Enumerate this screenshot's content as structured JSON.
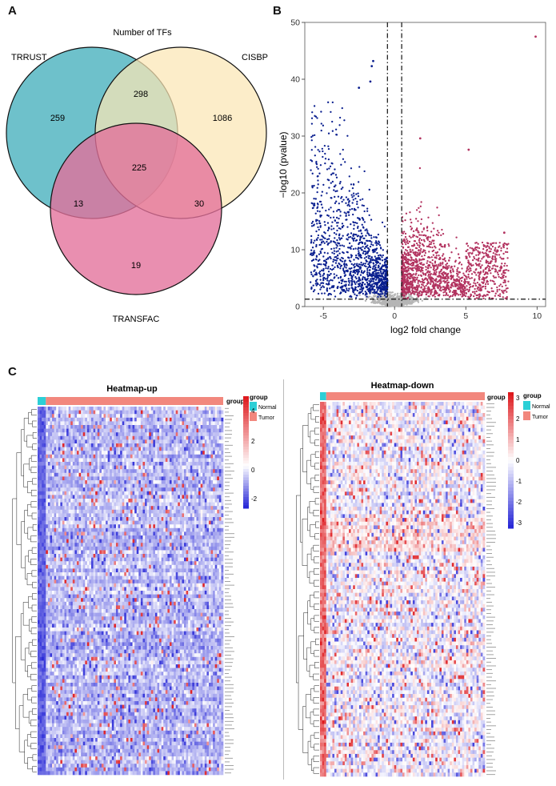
{
  "panels": {
    "a": "A",
    "b": "B",
    "c": "C"
  },
  "venn": {
    "title": "Number of TFs",
    "sets": [
      "TRRUST",
      "CISBP",
      "TRANSFAC"
    ],
    "regions": {
      "trrust_only": "259",
      "cisbp_only": "1086",
      "transfac_only": "19",
      "trrust_cisbp": "298",
      "trrust_transfac": "13",
      "cisbp_transfac": "30",
      "all_three": "225"
    },
    "colors": {
      "trrust": "#5ab8c4",
      "cisbp": "#fbe6b4",
      "transfac": "#e36f9a"
    }
  },
  "chart_data": [
    {
      "type": "scatter",
      "title": "",
      "xlabel": "log2 fold change",
      "ylabel": "−log10 (pvalue)",
      "xlim": [
        -6.3,
        10.6
      ],
      "ylim": [
        0,
        50
      ],
      "xticks": [
        "-5",
        "0",
        "5",
        "10"
      ],
      "yticks": [
        "0",
        "10",
        "20",
        "30",
        "40",
        "50"
      ],
      "thresholds": {
        "x": [
          -0.5,
          0.5
        ],
        "y": 1.3
      },
      "series": [
        {
          "name": "down",
          "color": "#0a1f8f"
        },
        {
          "name": "up",
          "color": "#b2325f"
        },
        {
          "name": "ns",
          "color": "#b5b5b5"
        }
      ],
      "highlight_points": [
        {
          "x": 9.9,
          "y": 47.5
        },
        {
          "x": -1.5,
          "y": 43.2
        },
        {
          "x": -1.6,
          "y": 42.3
        },
        {
          "x": -1.7,
          "y": 39.6
        },
        {
          "x": -2.5,
          "y": 38.5
        },
        {
          "x": 1.8,
          "y": 29.6
        },
        {
          "x": 5.2,
          "y": 27.6
        },
        {
          "x": 7.7,
          "y": 13.0
        }
      ]
    },
    {
      "type": "heatmap",
      "title": "Heatmap-up",
      "legend_title": "group",
      "groups": [
        "Normal",
        "Tumor"
      ],
      "colorbar_ticks": [
        "4",
        "2",
        "0",
        "-2"
      ],
      "colorbar_range": [
        -3,
        5
      ],
      "rows": 100,
      "cols": 90
    },
    {
      "type": "heatmap",
      "title": "Heatmap-down",
      "legend_title": "group",
      "groups": [
        "Normal",
        "Tumor"
      ],
      "colorbar_ticks": [
        "3",
        "2",
        "1",
        "0",
        "-1",
        "-2",
        "-3"
      ],
      "colorbar_range": [
        -3.4,
        3.4
      ],
      "rows": 100,
      "cols": 80
    }
  ],
  "group_colors": {
    "normal": "#2ccfd6",
    "tumor": "#f2877d"
  }
}
